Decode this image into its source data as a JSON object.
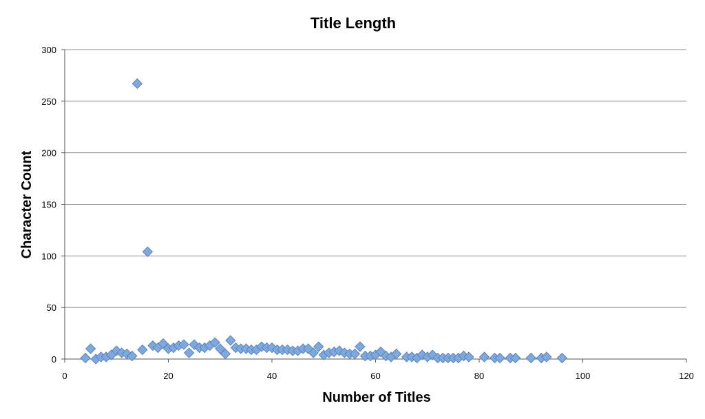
{
  "chart_data": {
    "type": "scatter",
    "title": "Title Length",
    "xlabel": "Number of Titles",
    "ylabel": "Character Count",
    "xlim": [
      0,
      120
    ],
    "ylim": [
      0,
      300
    ],
    "x_ticks": [
      0,
      20,
      40,
      60,
      80,
      100,
      120
    ],
    "y_ticks": [
      0,
      50,
      100,
      150,
      200,
      250,
      300
    ],
    "grid": "horizontal",
    "marker": "diamond",
    "colors": {
      "marker_fill": "#7fa9dc",
      "marker_stroke": "#5a86bf",
      "grid": "#8c8c8c"
    },
    "series": [
      {
        "points": [
          [
            4,
            1
          ],
          [
            5,
            10
          ],
          [
            6,
            0
          ],
          [
            7,
            2
          ],
          [
            8,
            2
          ],
          [
            9,
            4
          ],
          [
            10,
            8
          ],
          [
            11,
            6
          ],
          [
            12,
            5
          ],
          [
            13,
            3
          ],
          [
            14,
            267
          ],
          [
            15,
            9
          ],
          [
            16,
            104
          ],
          [
            17,
            13
          ],
          [
            18,
            11
          ],
          [
            19,
            15
          ],
          [
            20,
            10
          ],
          [
            21,
            11
          ],
          [
            22,
            13
          ],
          [
            23,
            14
          ],
          [
            24,
            6
          ],
          [
            25,
            14
          ],
          [
            26,
            11
          ],
          [
            27,
            11
          ],
          [
            28,
            13
          ],
          [
            29,
            16
          ],
          [
            30,
            10
          ],
          [
            31,
            5
          ],
          [
            32,
            18
          ],
          [
            33,
            11
          ],
          [
            34,
            10
          ],
          [
            35,
            10
          ],
          [
            36,
            9
          ],
          [
            37,
            9
          ],
          [
            38,
            12
          ],
          [
            39,
            11
          ],
          [
            40,
            11
          ],
          [
            41,
            9
          ],
          [
            42,
            9
          ],
          [
            43,
            9
          ],
          [
            44,
            8
          ],
          [
            45,
            8
          ],
          [
            46,
            10
          ],
          [
            47,
            10
          ],
          [
            48,
            6
          ],
          [
            49,
            12
          ],
          [
            50,
            4
          ],
          [
            51,
            6
          ],
          [
            52,
            7
          ],
          [
            53,
            8
          ],
          [
            54,
            6
          ],
          [
            55,
            5
          ],
          [
            56,
            5
          ],
          [
            57,
            12
          ],
          [
            58,
            3
          ],
          [
            59,
            3
          ],
          [
            60,
            4
          ],
          [
            61,
            7
          ],
          [
            62,
            3
          ],
          [
            63,
            2
          ],
          [
            64,
            5
          ],
          [
            66,
            2
          ],
          [
            67,
            2
          ],
          [
            68,
            1
          ],
          [
            69,
            4
          ],
          [
            70,
            2
          ],
          [
            71,
            4
          ],
          [
            72,
            1
          ],
          [
            73,
            1
          ],
          [
            74,
            1
          ],
          [
            75,
            1
          ],
          [
            76,
            1
          ],
          [
            77,
            3
          ],
          [
            78,
            2
          ],
          [
            81,
            2
          ],
          [
            83,
            1
          ],
          [
            84,
            1
          ],
          [
            86,
            1
          ],
          [
            87,
            1
          ],
          [
            90,
            1
          ],
          [
            92,
            1
          ],
          [
            93,
            2
          ],
          [
            96,
            1
          ]
        ]
      }
    ]
  }
}
